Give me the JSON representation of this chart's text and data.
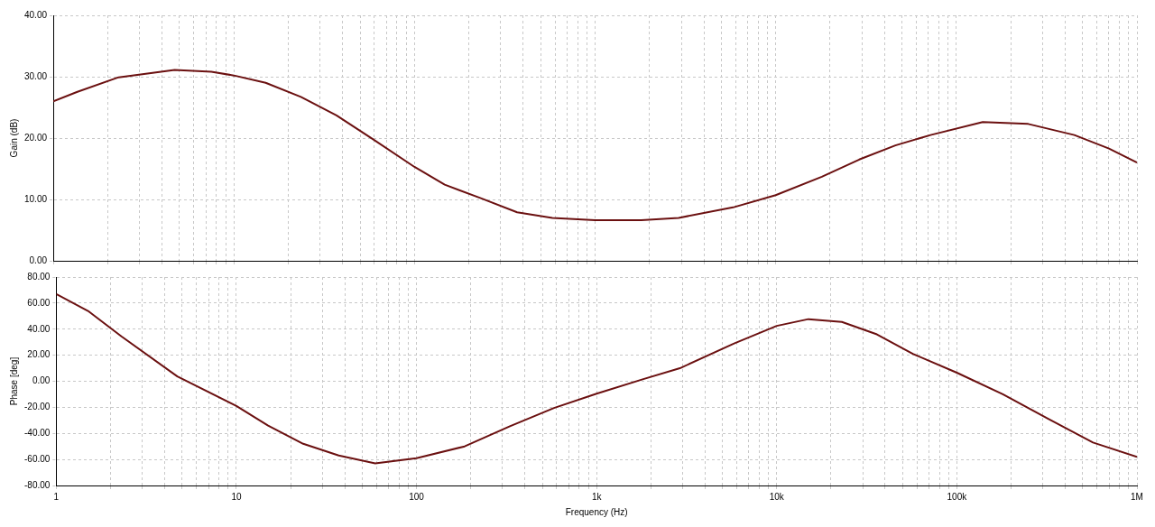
{
  "chart_data": [
    {
      "type": "line",
      "ylabel": "Gain (dB)",
      "log": "x",
      "grid": true,
      "marker": "none",
      "line_style": "solid",
      "tick_labels": "y",
      "xlim": [
        1,
        1000000
      ],
      "xticks": [
        {
          "value": 1,
          "label": null
        },
        {
          "value": 2,
          "label": null
        },
        {
          "value": 3,
          "label": null
        },
        {
          "value": 4,
          "label": null
        },
        {
          "value": 5,
          "label": null
        },
        {
          "value": 6,
          "label": null
        },
        {
          "value": 7,
          "label": null
        },
        {
          "value": 8,
          "label": null
        },
        {
          "value": 9,
          "label": null
        },
        {
          "value": 10,
          "label": null
        },
        {
          "value": 20,
          "label": null
        },
        {
          "value": 30,
          "label": null
        },
        {
          "value": 40,
          "label": null
        },
        {
          "value": 50,
          "label": null
        },
        {
          "value": 60,
          "label": null
        },
        {
          "value": 70,
          "label": null
        },
        {
          "value": 80,
          "label": null
        },
        {
          "value": 90,
          "label": null
        },
        {
          "value": 100,
          "label": null
        },
        {
          "value": 200,
          "label": null
        },
        {
          "value": 300,
          "label": null
        },
        {
          "value": 400,
          "label": null
        },
        {
          "value": 500,
          "label": null
        },
        {
          "value": 600,
          "label": null
        },
        {
          "value": 700,
          "label": null
        },
        {
          "value": 800,
          "label": null
        },
        {
          "value": 900,
          "label": null
        },
        {
          "value": 1000,
          "label": null
        },
        {
          "value": 2000,
          "label": null
        },
        {
          "value": 3000,
          "label": null
        },
        {
          "value": 4000,
          "label": null
        },
        {
          "value": 5000,
          "label": null
        },
        {
          "value": 6000,
          "label": null
        },
        {
          "value": 7000,
          "label": null
        },
        {
          "value": 8000,
          "label": null
        },
        {
          "value": 9000,
          "label": null
        },
        {
          "value": 10000,
          "label": null
        },
        {
          "value": 20000,
          "label": null
        },
        {
          "value": 30000,
          "label": null
        },
        {
          "value": 40000,
          "label": null
        },
        {
          "value": 50000,
          "label": null
        },
        {
          "value": 60000,
          "label": null
        },
        {
          "value": 70000,
          "label": null
        },
        {
          "value": 80000,
          "label": null
        },
        {
          "value": 90000,
          "label": null
        },
        {
          "value": 100000,
          "label": null
        },
        {
          "value": 200000,
          "label": null
        },
        {
          "value": 300000,
          "label": null
        },
        {
          "value": 400000,
          "label": null
        },
        {
          "value": 500000,
          "label": null
        },
        {
          "value": 600000,
          "label": null
        },
        {
          "value": 700000,
          "label": null
        },
        {
          "value": 800000,
          "label": null
        },
        {
          "value": 900000,
          "label": null
        },
        {
          "value": 1000000,
          "label": null
        }
      ],
      "ylim": [
        0,
        40
      ],
      "yticks": [
        {
          "value": 0,
          "label": "0.00"
        },
        {
          "value": 10,
          "label": "10.00"
        },
        {
          "value": 20,
          "label": "20.00"
        },
        {
          "value": 30,
          "label": "30.00"
        },
        {
          "value": 40,
          "label": "40.00"
        }
      ],
      "series": [
        {
          "color": "#6b1010",
          "x": [
            1,
            1.35,
            2.3,
            4.7,
            7.5,
            10,
            15,
            23.5,
            37,
            59,
            100,
            147,
            233,
            370,
            580,
            1000,
            1800,
            2900,
            5800,
            10000,
            18000,
            29000,
            46000,
            72000,
            140000,
            250000,
            450000,
            700000,
            1000000
          ],
          "values": [
            26,
            27.5,
            29.9,
            31.1,
            30.8,
            30.2,
            29,
            26.7,
            23.7,
            19.8,
            15.3,
            12.4,
            10.2,
            7.9,
            7,
            6.6,
            6.6,
            7,
            8.7,
            10.7,
            13.7,
            16.5,
            18.8,
            20.5,
            22.6,
            22.3,
            20.5,
            18.3,
            16
          ]
        }
      ]
    },
    {
      "type": "line",
      "ylabel": "Phase [deg]",
      "xlabel": "Frequency (Hz)",
      "log": "x",
      "grid": true,
      "marker": "none",
      "line_style": "solid",
      "xlim": [
        1,
        1000000
      ],
      "xticks": [
        1,
        {
          "value": 2,
          "label": null
        },
        {
          "value": 3,
          "label": null
        },
        {
          "value": 4,
          "label": null
        },
        {
          "value": 5,
          "label": null
        },
        {
          "value": 6,
          "label": null
        },
        {
          "value": 7,
          "label": null
        },
        {
          "value": 8,
          "label": null
        },
        {
          "value": 9,
          "label": null
        },
        10,
        {
          "value": 20,
          "label": null
        },
        {
          "value": 30,
          "label": null
        },
        {
          "value": 40,
          "label": null
        },
        {
          "value": 50,
          "label": null
        },
        {
          "value": 60,
          "label": null
        },
        {
          "value": 70,
          "label": null
        },
        {
          "value": 80,
          "label": null
        },
        {
          "value": 90,
          "label": null
        },
        100,
        {
          "value": 200,
          "label": null
        },
        {
          "value": 300,
          "label": null
        },
        {
          "value": 400,
          "label": null
        },
        {
          "value": 500,
          "label": null
        },
        {
          "value": 600,
          "label": null
        },
        {
          "value": 700,
          "label": null
        },
        {
          "value": 800,
          "label": null
        },
        {
          "value": 900,
          "label": null
        },
        {
          "value": 1000,
          "label": "1k"
        },
        {
          "value": 2000,
          "label": null
        },
        {
          "value": 3000,
          "label": null
        },
        {
          "value": 4000,
          "label": null
        },
        {
          "value": 5000,
          "label": null
        },
        {
          "value": 6000,
          "label": null
        },
        {
          "value": 7000,
          "label": null
        },
        {
          "value": 8000,
          "label": null
        },
        {
          "value": 9000,
          "label": null
        },
        {
          "value": 10000,
          "label": "10k"
        },
        {
          "value": 20000,
          "label": null
        },
        {
          "value": 30000,
          "label": null
        },
        {
          "value": 40000,
          "label": null
        },
        {
          "value": 50000,
          "label": null
        },
        {
          "value": 60000,
          "label": null
        },
        {
          "value": 70000,
          "label": null
        },
        {
          "value": 80000,
          "label": null
        },
        {
          "value": 90000,
          "label": null
        },
        {
          "value": 100000,
          "label": "100k"
        },
        {
          "value": 200000,
          "label": null
        },
        {
          "value": 300000,
          "label": null
        },
        {
          "value": 400000,
          "label": null
        },
        {
          "value": 500000,
          "label": null
        },
        {
          "value": 600000,
          "label": null
        },
        {
          "value": 700000,
          "label": null
        },
        {
          "value": 800000,
          "label": null
        },
        {
          "value": 900000,
          "label": null
        },
        {
          "value": 1000000,
          "label": "1M"
        }
      ],
      "ylim": [
        -80,
        80
      ],
      "yticks": [
        {
          "value": -80,
          "label": "-80.00"
        },
        {
          "value": -60,
          "label": "-60.00"
        },
        {
          "value": -40,
          "label": "-40.00"
        },
        {
          "value": -20,
          "label": "-20.00"
        },
        {
          "value": 0,
          "label": "0.00"
        },
        {
          "value": 20,
          "label": "20.00"
        },
        {
          "value": 40,
          "label": "40.00"
        },
        {
          "value": 60,
          "label": "60.00"
        },
        {
          "value": 80,
          "label": "80.00"
        }
      ],
      "series": [
        {
          "color": "#6b1010",
          "x": [
            1,
            1.5,
            2.3,
            4.7,
            10,
            15,
            23.5,
            37,
            59,
            100,
            185,
            330,
            580,
            1000,
            1800,
            2900,
            5800,
            10000,
            15000,
            23000,
            36000,
            57000,
            100000,
            180000,
            320000,
            570000,
            1000000
          ],
          "values": [
            67,
            54,
            34.5,
            3.7,
            -19,
            -34,
            -48,
            -57,
            -63,
            -59,
            -50,
            -34.5,
            -20.5,
            -9.5,
            1.5,
            10,
            29,
            42.5,
            47.7,
            45.5,
            36,
            21,
            6.6,
            -10,
            -28.6,
            -47,
            -58
          ]
        }
      ]
    }
  ]
}
